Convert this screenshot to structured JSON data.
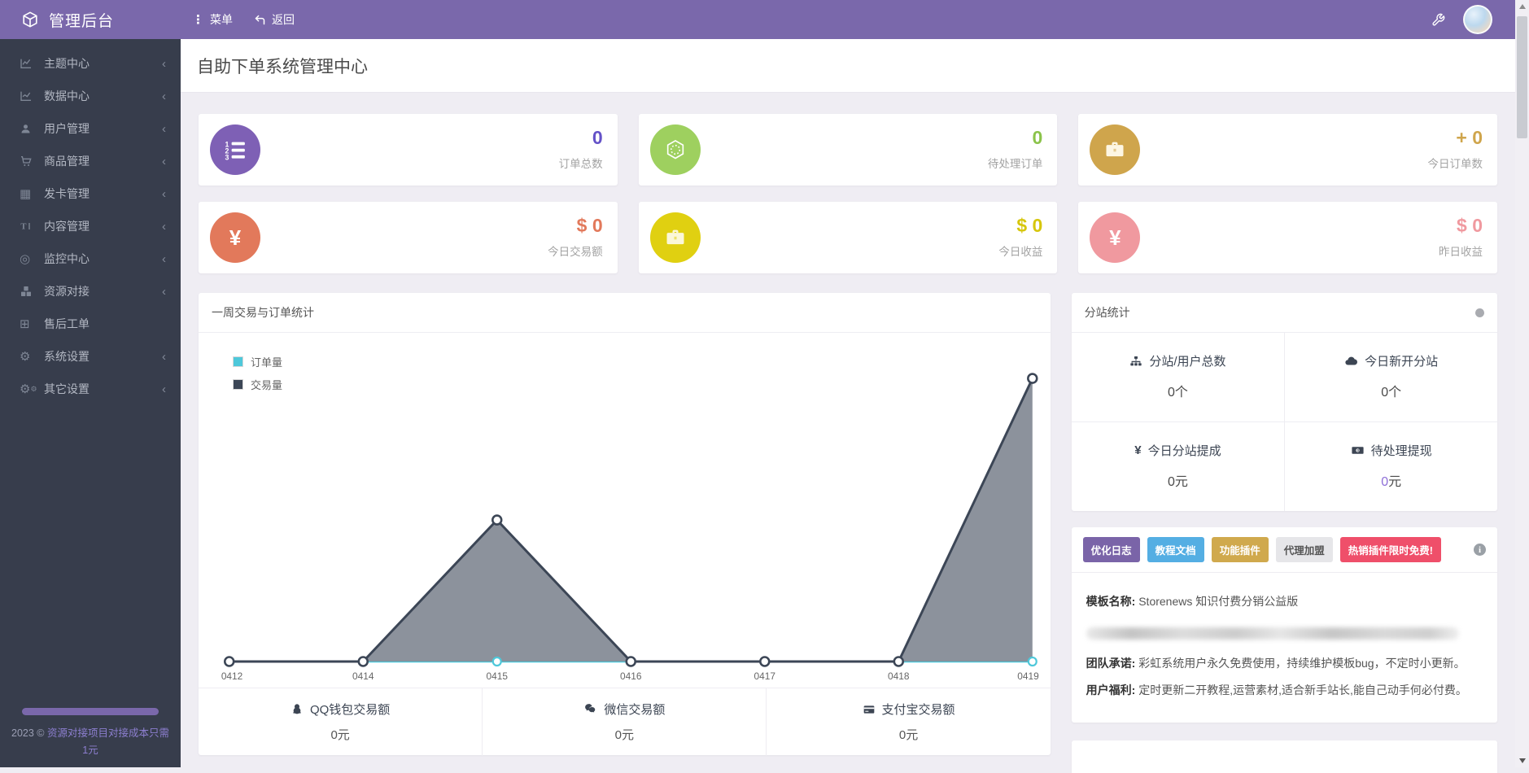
{
  "header": {
    "brand": "管理后台",
    "menu": "菜单",
    "back": "返回"
  },
  "sidebar": {
    "items": [
      {
        "label": "主题中心"
      },
      {
        "label": "数据中心"
      },
      {
        "label": "用户管理"
      },
      {
        "label": "商品管理"
      },
      {
        "label": "发卡管理"
      },
      {
        "label": "内容管理"
      },
      {
        "label": "监控中心"
      },
      {
        "label": "资源对接"
      },
      {
        "label": "售后工单"
      },
      {
        "label": "系统设置"
      },
      {
        "label": "其它设置"
      }
    ],
    "footer": {
      "year": "2023 ©",
      "link": "资源对接项目对接成本只需 1元"
    }
  },
  "page": {
    "title": "自助下单系统管理中心"
  },
  "stats": [
    {
      "label": "订单总数",
      "value": "0",
      "circle": "#7e60b5",
      "accent": "#6452c8"
    },
    {
      "label": "待处理订单",
      "value": "0",
      "circle": "#9ed05f",
      "accent": "#8bc34a"
    },
    {
      "label": "今日订单数",
      "value": "+ 0",
      "circle": "#cfa54c",
      "accent": "#cfa54c"
    },
    {
      "label": "今日交易额",
      "value": "$ 0",
      "circle": "#e2795b",
      "accent": "#e2795b"
    },
    {
      "label": "今日收益",
      "value": "$ 0",
      "circle": "#e0d011",
      "accent": "#d6c60c"
    },
    {
      "label": "昨日收益",
      "value": "$ 0",
      "circle": "#f0999f",
      "accent": "#f0999f"
    }
  ],
  "chart_panel": {
    "title": "一周交易与订单统计",
    "footer": [
      {
        "label": "QQ钱包交易额",
        "value": "0元"
      },
      {
        "label": "微信交易额",
        "value": "0元"
      },
      {
        "label": "支付宝交易额",
        "value": "0元"
      }
    ]
  },
  "chart_data": {
    "type": "area",
    "title": "一周交易与订单统计",
    "categories": [
      "0412",
      "0414",
      "0415",
      "0416",
      "0417",
      "0418",
      "0419"
    ],
    "series": [
      {
        "name": "订单量",
        "color": "#4ec8da",
        "values": [
          0,
          0,
          0,
          0,
          0,
          0,
          0
        ]
      },
      {
        "name": "交易量",
        "color": "#3c4656",
        "fill": "#868c97",
        "values": [
          0,
          0,
          1,
          0,
          0,
          0,
          2
        ]
      }
    ],
    "ylim": [
      0,
      2.15
    ],
    "grid": false,
    "legend_position": "top-left",
    "xlabel": "",
    "ylabel": ""
  },
  "substation": {
    "title": "分站统计",
    "cells": [
      {
        "label": "分站/用户总数",
        "value": "0",
        "unit": "个"
      },
      {
        "label": "今日新开分站",
        "value": "0",
        "unit": "个"
      },
      {
        "label": "今日分站提成",
        "value": "0",
        "unit": "元"
      },
      {
        "label": "待处理提现",
        "value": "0",
        "unit": "元",
        "value_color": "#8e6fd8"
      }
    ]
  },
  "promo": {
    "badges": [
      {
        "label": "优化日志",
        "bg": "#7a64a8",
        "fg": "#ffffff"
      },
      {
        "label": "教程文档",
        "bg": "#54aee3",
        "fg": "#ffffff"
      },
      {
        "label": "功能插件",
        "bg": "#d0a94d",
        "fg": "#ffffff"
      },
      {
        "label": "代理加盟",
        "bg": "#e6e6e9",
        "fg": "#555555"
      },
      {
        "label": "热销插件限时免费!",
        "bg": "#ef4f6a",
        "fg": "#ffffff"
      }
    ],
    "info_glyph": "i",
    "template_label": "模板名称:",
    "template_name": "Storenews 知识付费分销公益版",
    "promise_label": "团队承诺:",
    "promise_text": "彩虹系统用户永久免费使用，持续维护模板bug，不定时小更新。",
    "welfare_label": "用户福利:",
    "welfare_text": "定时更新二开教程,运营素材,适合新手站长,能自己动手何必付费。"
  },
  "colors": {
    "header_bg": "#7a68ab",
    "sidebar_bg": "#373d4c",
    "page_bg": "#efedf3",
    "legend_order_color": "#4ec8da",
    "legend_trade_color": "#3c4656"
  }
}
